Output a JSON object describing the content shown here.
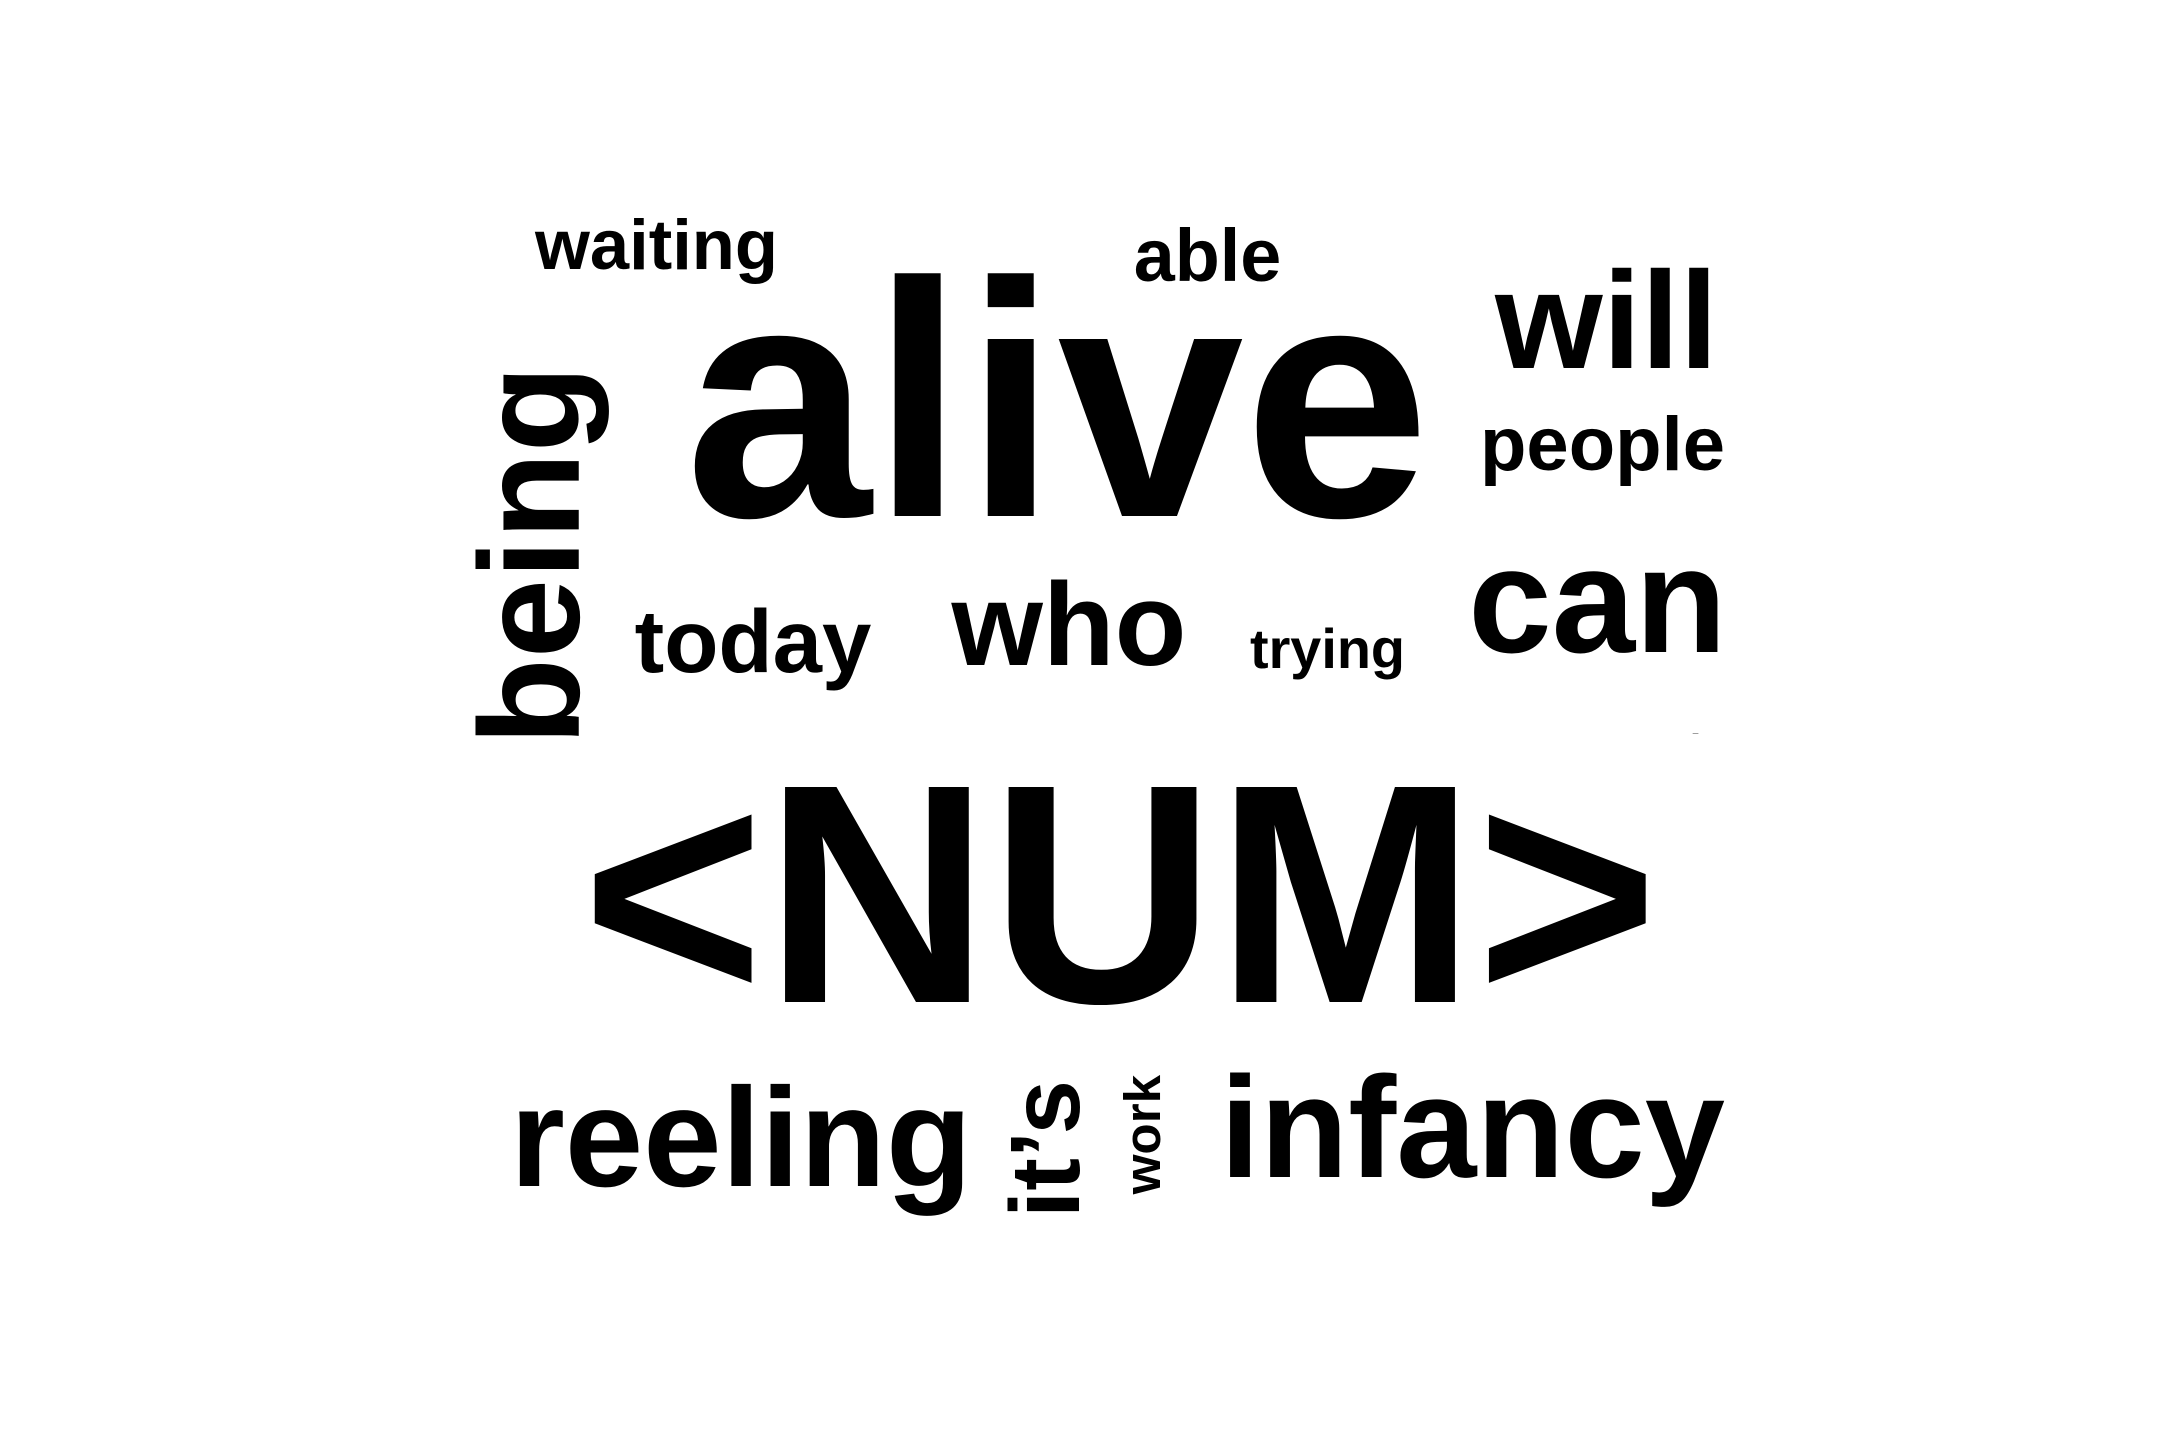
{
  "word_cloud": {
    "text_color": "#000000",
    "background": "#ffffff",
    "words": [
      {
        "text": "waiting",
        "orientation": "horizontal"
      },
      {
        "text": "able",
        "orientation": "horizontal"
      },
      {
        "text": "alive",
        "orientation": "horizontal"
      },
      {
        "text": "will",
        "orientation": "horizontal"
      },
      {
        "text": "people",
        "orientation": "horizontal"
      },
      {
        "text": "being",
        "orientation": "vertical"
      },
      {
        "text": "today",
        "orientation": "horizontal"
      },
      {
        "text": "who",
        "orientation": "horizontal"
      },
      {
        "text": "trying",
        "orientation": "horizontal"
      },
      {
        "text": "can",
        "orientation": "horizontal"
      },
      {
        "text": "_",
        "orientation": "horizontal"
      },
      {
        "text": "<NUM>",
        "orientation": "horizontal"
      },
      {
        "text": "reeling",
        "orientation": "horizontal"
      },
      {
        "text": "it’s",
        "orientation": "vertical"
      },
      {
        "text": "work",
        "orientation": "vertical"
      },
      {
        "text": "infancy",
        "orientation": "horizontal"
      }
    ]
  }
}
